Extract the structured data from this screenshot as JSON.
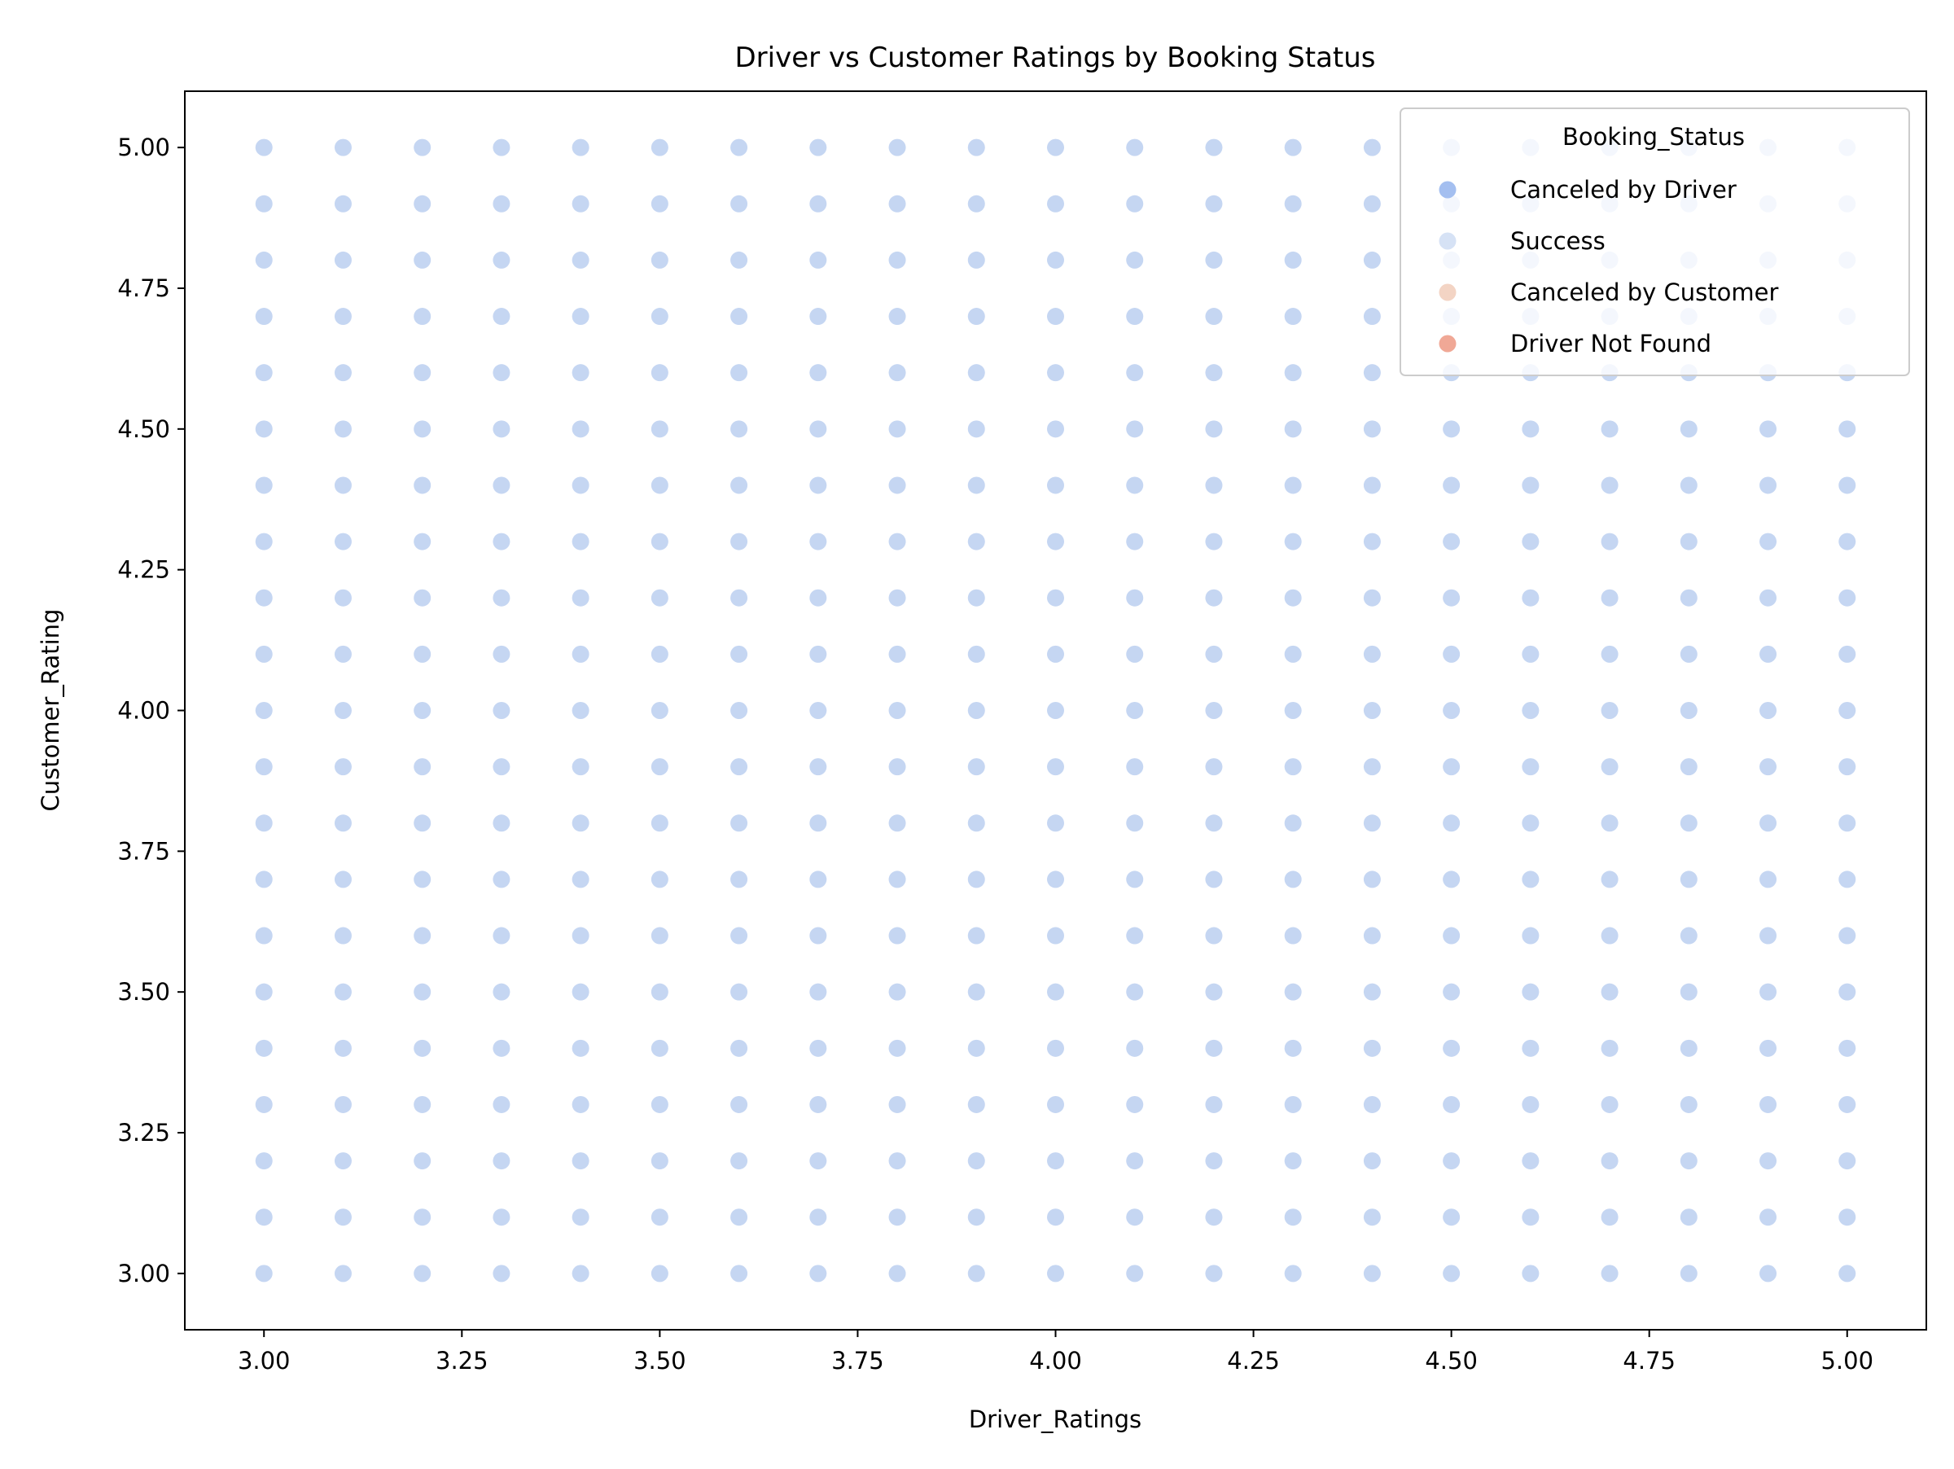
{
  "chart_data": {
    "type": "scatter",
    "title": "Driver vs Customer Ratings by Booking Status",
    "xlabel": "Driver_Ratings",
    "ylabel": "Customer_Rating",
    "xlim": [
      2.9,
      5.1
    ],
    "ylim": [
      2.9,
      5.1
    ],
    "x_ticks": [
      "3.00",
      "3.25",
      "3.50",
      "3.75",
      "4.00",
      "4.25",
      "4.50",
      "4.75",
      "5.00"
    ],
    "y_ticks": [
      "3.00",
      "3.25",
      "3.50",
      "3.75",
      "4.00",
      "4.25",
      "4.50",
      "4.75",
      "5.00"
    ],
    "grid": false,
    "legend": {
      "title": "Booking_Status",
      "placement": "top-right",
      "entries": [
        {
          "label": "Canceled by Driver",
          "color": "#a4bff0"
        },
        {
          "label": "Success",
          "color": "#d6e2f5"
        },
        {
          "label": "Canceled by Customer",
          "color": "#f3d4c4"
        },
        {
          "label": "Driver Not Found",
          "color": "#f0a896"
        }
      ]
    },
    "series": [
      {
        "name": "Success",
        "color": "#c5d6f2",
        "x": [
          3.0,
          3.1,
          3.2,
          3.3,
          3.4,
          3.5,
          3.6,
          3.7,
          3.8,
          3.9,
          4.0,
          4.1,
          4.2,
          4.3,
          4.4,
          4.5,
          4.6,
          4.7,
          4.8,
          4.9,
          5.0
        ],
        "y": [
          3.0,
          3.1,
          3.2,
          3.3,
          3.4,
          3.5,
          3.6,
          3.7,
          3.8,
          3.9,
          4.0,
          4.1,
          4.2,
          4.3,
          4.4,
          4.5,
          4.6,
          4.7,
          4.8,
          4.9,
          5.0
        ],
        "layout": "full grid of every x paired with every y"
      }
    ]
  }
}
